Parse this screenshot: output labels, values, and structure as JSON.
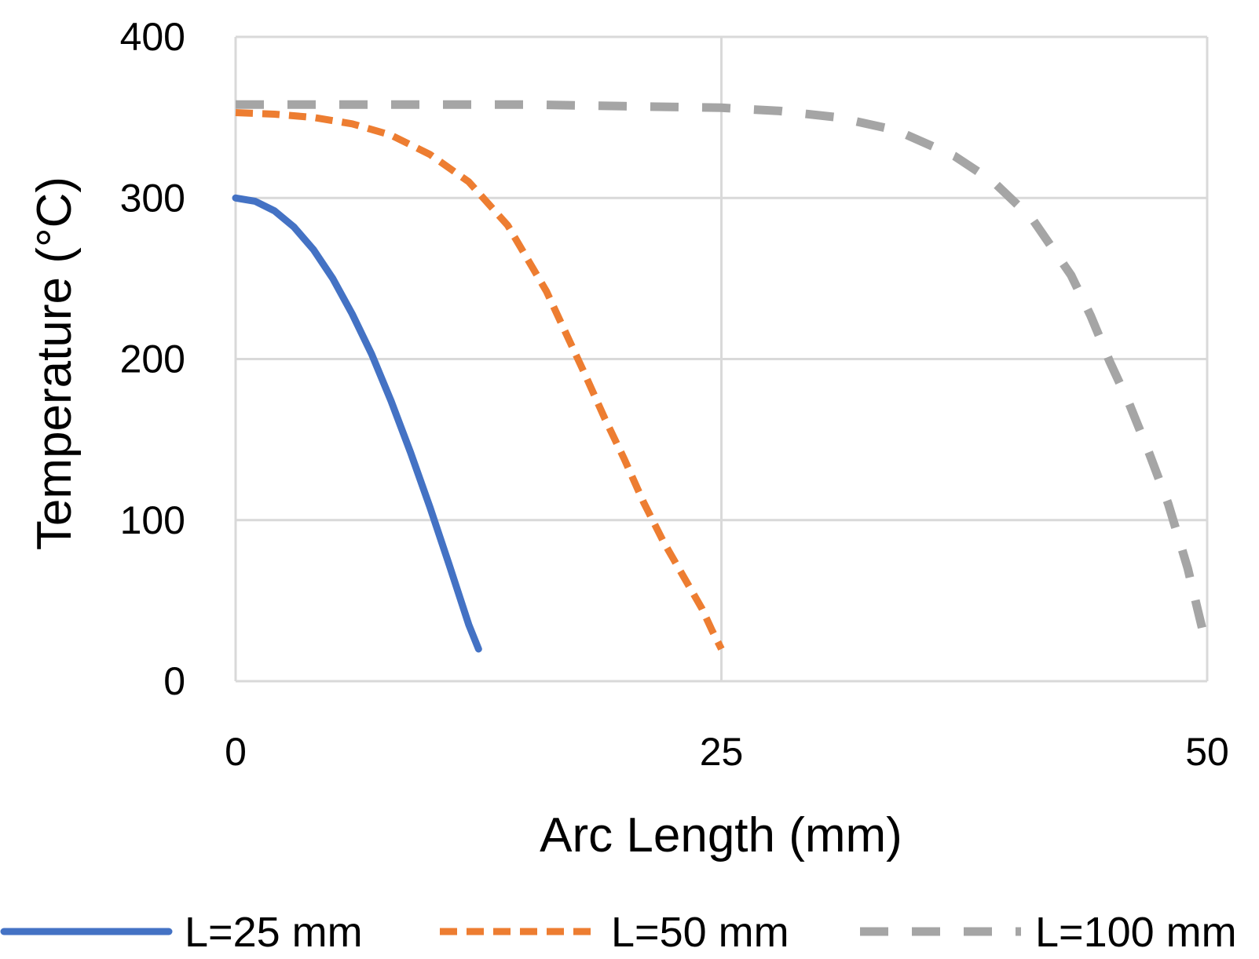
{
  "chart_data": {
    "type": "line",
    "xlabel": "Arc Length (mm)",
    "ylabel": "Temperature (°C)",
    "xlim": [
      0,
      50
    ],
    "ylim": [
      0,
      400
    ],
    "xticks": [
      0,
      25,
      50
    ],
    "yticks": [
      0,
      100,
      200,
      300,
      400
    ],
    "grid": true,
    "legend": "bottom",
    "series": [
      {
        "name": "L=25 mm",
        "color": "#4472C4",
        "style": "solid",
        "x": [
          0,
          1,
          2,
          3,
          4,
          5,
          6,
          7,
          8,
          9,
          10,
          11,
          12,
          12.5
        ],
        "y": [
          300,
          298,
          292,
          282,
          268,
          250,
          228,
          203,
          174,
          142,
          108,
          72,
          35,
          20
        ]
      },
      {
        "name": "L=50 mm",
        "color": "#ED7D31",
        "style": "dashed",
        "x": [
          0,
          2,
          4,
          6,
          8,
          10,
          12,
          14,
          16,
          18,
          19,
          20,
          21,
          22,
          23,
          24,
          24.5,
          25
        ],
        "y": [
          353,
          352,
          350,
          346,
          339,
          327,
          310,
          283,
          242,
          190,
          163,
          138,
          111,
          87,
          66,
          45,
          32,
          20
        ]
      },
      {
        "name": "L=100 mm",
        "color": "#A5A5A5",
        "style": "dashed",
        "x": [
          0,
          5,
          10,
          15,
          20,
          25,
          28,
          31,
          34,
          37,
          39,
          41,
          43,
          44,
          45,
          46,
          47,
          48,
          49,
          49.5,
          50
        ],
        "y": [
          358,
          358,
          358,
          358,
          357,
          356,
          354,
          350,
          342,
          326,
          310,
          287,
          252,
          227,
          198,
          172,
          142,
          110,
          70,
          45,
          20
        ]
      }
    ]
  }
}
